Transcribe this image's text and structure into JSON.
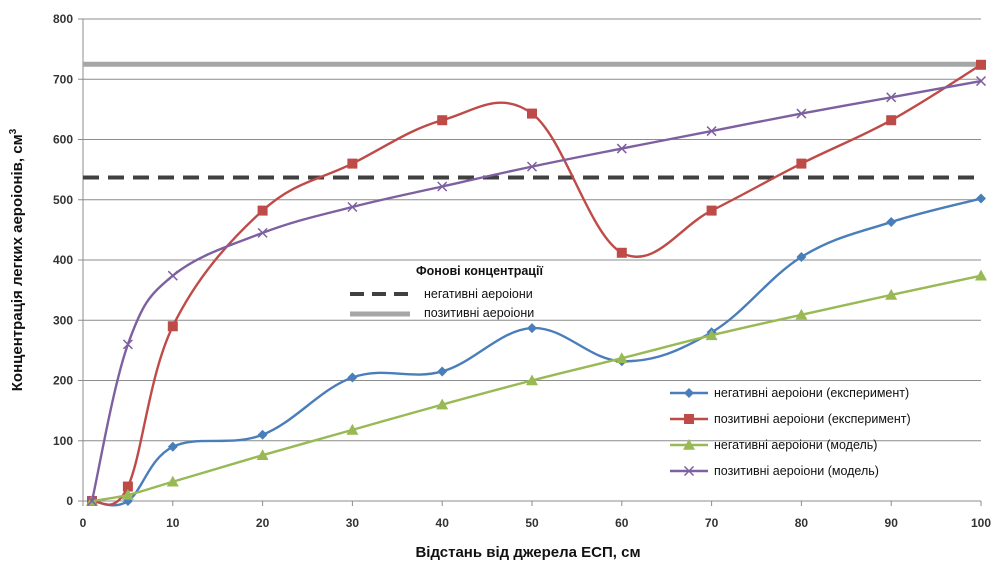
{
  "chart_data": {
    "type": "line",
    "xlabel": "Відстань від джерела ЕСП, см",
    "ylabel_main": "Концентрація легких аероіонів, см",
    "ylabel_sup": "3",
    "xlim": [
      0,
      100
    ],
    "ylim": [
      0,
      800
    ],
    "x_ticks": [
      0,
      10,
      20,
      30,
      40,
      50,
      60,
      70,
      80,
      90,
      100
    ],
    "y_ticks": [
      0,
      100,
      200,
      300,
      400,
      500,
      600,
      700,
      800
    ],
    "x_tick_labels": [
      "0",
      "10",
      "20",
      "30",
      "40",
      "50",
      "60",
      "70",
      "80",
      "90",
      "100"
    ],
    "y_tick_labels": [
      "0",
      "100",
      "200",
      "300",
      "400",
      "500",
      "600",
      "700",
      "800"
    ],
    "grid": "horizontal",
    "series": [
      {
        "name": "негативні аероіони (експеримент)",
        "color": "#4a7ebb",
        "marker": "diamond",
        "x": [
          1,
          5,
          10,
          20,
          30,
          40,
          50,
          60,
          70,
          80,
          90,
          100
        ],
        "y": [
          0,
          0,
          90,
          110,
          205,
          215,
          287,
          232,
          280,
          405,
          463,
          502
        ]
      },
      {
        "name": "позитивні аероіони (експеримент)",
        "color": "#be4b48",
        "marker": "square",
        "x": [
          1,
          5,
          10,
          20,
          30,
          40,
          50,
          60,
          70,
          80,
          90,
          100
        ],
        "y": [
          0,
          24,
          290,
          482,
          560,
          632,
          643,
          412,
          482,
          560,
          632,
          724
        ]
      },
      {
        "name": "негативні аероіони (модель)",
        "color": "#98b954",
        "marker": "triangle",
        "x": [
          1,
          5,
          10,
          20,
          30,
          40,
          50,
          60,
          70,
          80,
          90,
          100
        ],
        "y": [
          0,
          10,
          32,
          76,
          118,
          160,
          200,
          237,
          275,
          309,
          342,
          374
        ]
      },
      {
        "name": "позитивні аероіони (модель)",
        "color": "#7d60a0",
        "marker": "x",
        "x": [
          1,
          5,
          10,
          20,
          30,
          40,
          50,
          60,
          70,
          80,
          90,
          100
        ],
        "y": [
          0,
          260,
          374,
          445,
          488,
          522,
          555,
          585,
          614,
          643,
          670,
          697
        ]
      }
    ],
    "background": {
      "title": "Фонові концентрації",
      "lines": [
        {
          "name": "негативні аероіони",
          "value": 537,
          "color": "#404040",
          "style": "dashed"
        },
        {
          "name": "позитивні аероіони",
          "value": 725,
          "color": "#a6a6a6",
          "style": "solid"
        }
      ]
    },
    "legend_position": "bottom-right"
  }
}
